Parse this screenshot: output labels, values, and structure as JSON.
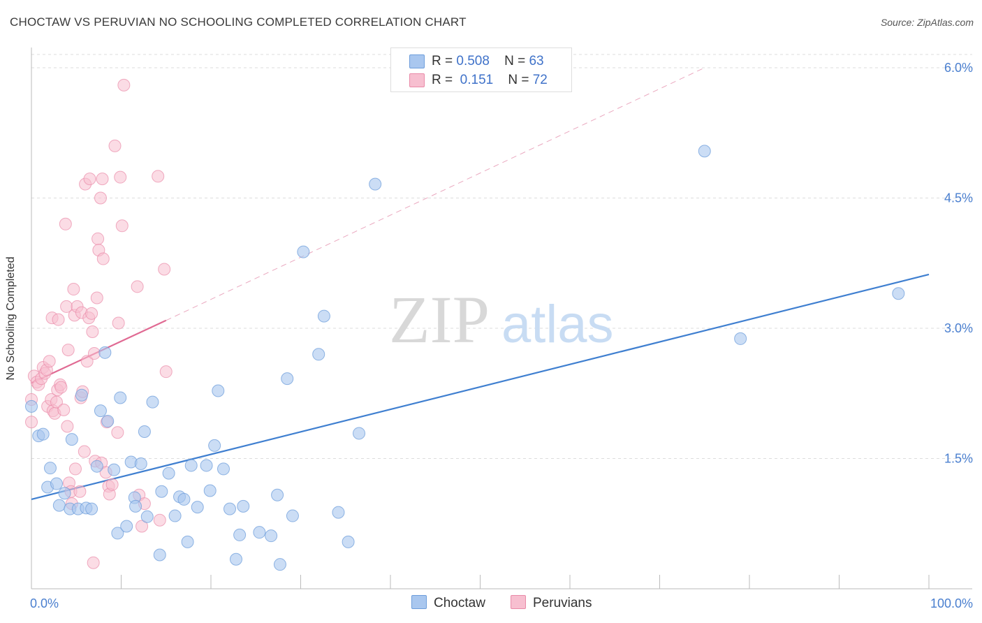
{
  "title": "CHOCTAW VS PERUVIAN NO SCHOOLING COMPLETED CORRELATION CHART",
  "source": "Source: ZipAtlas.com",
  "watermark": {
    "zip": "ZIP",
    "atlas": "atlas"
  },
  "legend": {
    "rows": [
      {
        "r_label": "R =",
        "r_value": "0.508",
        "n_label": "N =",
        "n_value": "63"
      },
      {
        "r_label": "R =",
        "r_value": "0.151",
        "n_label": "N =",
        "n_value": "72"
      }
    ]
  },
  "colors": {
    "choctaw_fill": "#a9c7ef",
    "choctaw_stroke": "#6d9ddb",
    "choctaw_line": "#3f7fd0",
    "peruvian_fill": "#f7bfd0",
    "peruvian_stroke": "#e98aa8",
    "peruvian_line": "#e06a93",
    "tick_label": "#4a7fcf",
    "grid": "#dddddd"
  },
  "chart_data": {
    "type": "scatter",
    "title": "CHOCTAW VS PERUVIAN NO SCHOOLING COMPLETED CORRELATION CHART",
    "xlabel": "",
    "ylabel": "No Schooling Completed",
    "xlim": [
      0,
      100
    ],
    "ylim": [
      0,
      6.15
    ],
    "x_tick_labels": [
      "0.0%",
      "100.0%"
    ],
    "y_ticks": [
      1.5,
      3.0,
      4.5,
      6.0
    ],
    "y_tick_labels": [
      "1.5%",
      "3.0%",
      "4.5%",
      "6.0%"
    ],
    "grid": true,
    "legend_position": "bottom-center",
    "series": [
      {
        "name": "Choctaw",
        "r": 0.508,
        "n": 63,
        "trend": {
          "x": [
            0,
            100
          ],
          "y": [
            1.03,
            3.62
          ],
          "style": "solid"
        },
        "points": [
          [
            0,
            2.1
          ],
          [
            0.8,
            1.76
          ],
          [
            1.3,
            1.78
          ],
          [
            2.1,
            1.39
          ],
          [
            1.8,
            1.17
          ],
          [
            2.8,
            1.21
          ],
          [
            3.1,
            0.96
          ],
          [
            3.7,
            1.1
          ],
          [
            4.3,
            0.92
          ],
          [
            4.5,
            1.72
          ],
          [
            5.2,
            0.92
          ],
          [
            5.6,
            2.23
          ],
          [
            6.1,
            0.93
          ],
          [
            6.7,
            0.92
          ],
          [
            7.3,
            1.41
          ],
          [
            7.7,
            2.05
          ],
          [
            8.2,
            2.72
          ],
          [
            8.5,
            1.93
          ],
          [
            9.2,
            1.37
          ],
          [
            9.6,
            0.64
          ],
          [
            9.9,
            2.2
          ],
          [
            10.6,
            0.72
          ],
          [
            11.1,
            1.46
          ],
          [
            11.5,
            1.05
          ],
          [
            11.6,
            0.95
          ],
          [
            12.2,
            1.44
          ],
          [
            12.6,
            1.81
          ],
          [
            12.9,
            0.83
          ],
          [
            13.5,
            2.15
          ],
          [
            14.3,
            0.39
          ],
          [
            14.5,
            1.12
          ],
          [
            15.3,
            1.33
          ],
          [
            16.0,
            0.84
          ],
          [
            16.5,
            1.06
          ],
          [
            17.0,
            1.03
          ],
          [
            17.4,
            0.54
          ],
          [
            17.8,
            1.42
          ],
          [
            18.5,
            0.94
          ],
          [
            19.5,
            1.42
          ],
          [
            19.9,
            1.13
          ],
          [
            20.4,
            1.65
          ],
          [
            20.8,
            2.28
          ],
          [
            21.4,
            1.38
          ],
          [
            22.1,
            0.92
          ],
          [
            22.8,
            0.34
          ],
          [
            23.2,
            0.62
          ],
          [
            23.6,
            0.95
          ],
          [
            25.4,
            0.65
          ],
          [
            26.7,
            0.61
          ],
          [
            27.4,
            1.08
          ],
          [
            27.7,
            0.28
          ],
          [
            28.5,
            2.42
          ],
          [
            29.1,
            0.84
          ],
          [
            30.3,
            3.88
          ],
          [
            32.0,
            2.7
          ],
          [
            32.6,
            3.14
          ],
          [
            34.2,
            0.88
          ],
          [
            35.3,
            0.54
          ],
          [
            36.5,
            1.79
          ],
          [
            38.3,
            4.66
          ],
          [
            75.0,
            5.04
          ],
          [
            79.0,
            2.88
          ],
          [
            96.6,
            3.4
          ]
        ]
      },
      {
        "name": "Peruvians",
        "r": 0.151,
        "n": 72,
        "trend": {
          "x": [
            0,
            15
          ],
          "y": [
            2.37,
            3.09
          ],
          "style": "solid",
          "extension": {
            "x": [
              15,
              75
            ],
            "y": [
              3.09,
              6.0
            ],
            "style": "dashed"
          }
        },
        "points": [
          [
            0,
            1.92
          ],
          [
            0,
            2.18
          ],
          [
            0.3,
            2.45
          ],
          [
            0.6,
            2.38
          ],
          [
            0.8,
            2.35
          ],
          [
            1.1,
            2.42
          ],
          [
            1.3,
            2.55
          ],
          [
            1.5,
            2.48
          ],
          [
            1.7,
            2.52
          ],
          [
            1.8,
            2.1
          ],
          [
            2.0,
            2.62
          ],
          [
            2.2,
            2.18
          ],
          [
            2.3,
            3.12
          ],
          [
            2.4,
            2.05
          ],
          [
            2.6,
            2.02
          ],
          [
            2.8,
            2.15
          ],
          [
            2.9,
            2.29
          ],
          [
            3.0,
            3.1
          ],
          [
            3.2,
            2.35
          ],
          [
            3.3,
            2.32
          ],
          [
            3.6,
            2.06
          ],
          [
            3.8,
            4.2
          ],
          [
            3.9,
            3.25
          ],
          [
            4.0,
            1.87
          ],
          [
            4.1,
            2.75
          ],
          [
            4.2,
            1.22
          ],
          [
            4.4,
            1.12
          ],
          [
            4.5,
            0.98
          ],
          [
            4.7,
            3.45
          ],
          [
            4.8,
            3.15
          ],
          [
            4.9,
            1.38
          ],
          [
            5.1,
            3.25
          ],
          [
            5.4,
            1.12
          ],
          [
            5.5,
            2.2
          ],
          [
            5.6,
            3.18
          ],
          [
            5.7,
            2.27
          ],
          [
            5.9,
            1.58
          ],
          [
            6.0,
            4.66
          ],
          [
            6.2,
            2.62
          ],
          [
            6.4,
            3.12
          ],
          [
            6.5,
            4.72
          ],
          [
            6.7,
            3.17
          ],
          [
            6.8,
            2.96
          ],
          [
            6.9,
            0.3
          ],
          [
            7.0,
            2.71
          ],
          [
            7.1,
            1.47
          ],
          [
            7.3,
            3.35
          ],
          [
            7.4,
            4.03
          ],
          [
            7.5,
            3.9
          ],
          [
            7.7,
            4.5
          ],
          [
            7.8,
            1.45
          ],
          [
            7.9,
            4.72
          ],
          [
            8.0,
            3.8
          ],
          [
            8.3,
            1.34
          ],
          [
            8.4,
            1.92
          ],
          [
            8.6,
            1.18
          ],
          [
            8.7,
            1.09
          ],
          [
            9.0,
            1.2
          ],
          [
            9.3,
            5.1
          ],
          [
            9.6,
            1.8
          ],
          [
            9.7,
            3.06
          ],
          [
            9.9,
            4.74
          ],
          [
            10.1,
            4.18
          ],
          [
            10.3,
            5.8
          ],
          [
            11.8,
            3.48
          ],
          [
            12.0,
            1.08
          ],
          [
            12.3,
            0.72
          ],
          [
            12.6,
            0.98
          ],
          [
            14.1,
            4.75
          ],
          [
            14.3,
            0.79
          ],
          [
            14.8,
            3.68
          ],
          [
            15.0,
            2.5
          ]
        ]
      }
    ]
  },
  "bottom_legend": {
    "choctaw": "Choctaw",
    "peruvians": "Peruvians"
  }
}
